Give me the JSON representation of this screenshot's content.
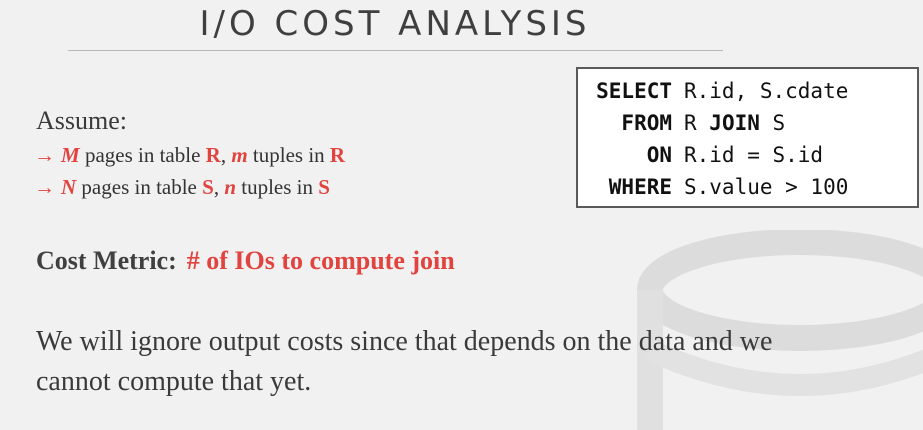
{
  "title": "I/O COST ANALYSIS",
  "assume": {
    "heading": "Assume:",
    "lines": [
      {
        "arrow": "→",
        "pages_var": "M",
        "pages_text": " pages in table ",
        "table": "R",
        "sep": ", ",
        "tuples_var": "m",
        "tuples_text": " tuples in ",
        "table2": "R"
      },
      {
        "arrow": "→",
        "pages_var": "N",
        "pages_text": " pages in table ",
        "table": "S",
        "sep": ", ",
        "tuples_var": "n",
        "tuples_text": " tuples in ",
        "table2": "S"
      }
    ]
  },
  "sql": {
    "lines": [
      {
        "keyword": "SELECT",
        "rest": "R.id, S.cdate"
      },
      {
        "keyword": "FROM",
        "rest": "R ",
        "keyword2": "JOIN",
        "rest2": " S"
      },
      {
        "keyword": "ON",
        "rest": "R.id = S.id"
      },
      {
        "keyword": "WHERE",
        "rest": "S.value > 100"
      }
    ]
  },
  "cost_metric": {
    "label": "Cost Metric:",
    "value": "# of IOs to compute join"
  },
  "note": "We will ignore output costs since that depends on the data and we cannot compute that yet.",
  "colors": {
    "accent": "#e1433f",
    "text": "#3a3a3a",
    "background": "#f1f1f1"
  }
}
